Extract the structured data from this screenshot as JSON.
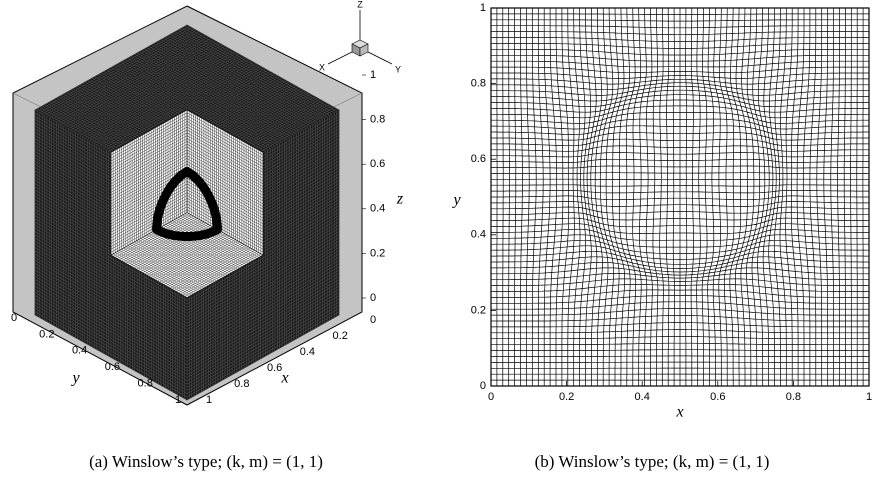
{
  "panels": [
    {
      "caption": "(a) Winslow’s type; (k, m) = (1, 1)",
      "axis_labels": {
        "x": "x",
        "y": "y",
        "z": "z"
      },
      "x_ticks": [
        0,
        0.2,
        0.4,
        0.6,
        0.8,
        1
      ],
      "y_ticks": [
        0,
        0.2,
        0.4,
        0.6,
        0.8,
        1
      ],
      "z_ticks": [
        0,
        0.2,
        0.4,
        0.6,
        0.8,
        1
      ],
      "triad": {
        "x": "X",
        "y": "Y",
        "z": "Z"
      }
    },
    {
      "caption": "(b) Winslow’s type; (k, m) = (1, 1)",
      "axis_labels": {
        "x": "x",
        "y": "y"
      },
      "x_ticks": [
        0,
        0.2,
        0.4,
        0.6,
        0.8,
        1
      ],
      "y_ticks": [
        0,
        0.2,
        0.4,
        0.6,
        0.8,
        1
      ]
    }
  ]
}
